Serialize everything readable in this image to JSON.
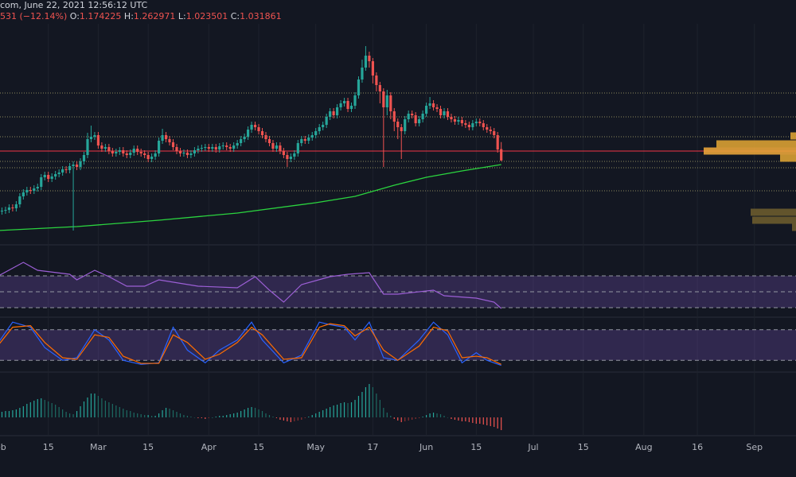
{
  "header": {
    "source": "com, June 22, 2021 12:56:12 UTC",
    "change": "531 (−12.14%)",
    "labels": [
      "O:",
      "H:",
      "L:",
      "C:"
    ]
  },
  "chart_data": [
    {
      "type": "candlestick",
      "up_color": "#26a69a",
      "down_color": "#ef5350",
      "xlim": [
        0.45,
        223.66
      ],
      "xticks": [
        {
          "value": 0,
          "label": "Feb"
        },
        {
          "value": 14,
          "label": "15"
        },
        {
          "value": 28,
          "label": "Mar"
        },
        {
          "value": 42,
          "label": "15"
        },
        {
          "value": 59,
          "label": "Apr"
        },
        {
          "value": 73,
          "label": "15"
        },
        {
          "value": 89,
          "label": "May"
        },
        {
          "value": 105,
          "label": "17"
        },
        {
          "value": 120,
          "label": "Jun"
        },
        {
          "value": 134,
          "label": "15"
        },
        {
          "value": 150,
          "label": "Jul"
        },
        {
          "value": 164,
          "label": "15"
        },
        {
          "value": 181,
          "label": "Aug"
        },
        {
          "value": 196,
          "label": "16"
        },
        {
          "value": 212,
          "label": "Sep"
        }
      ],
      "ylim": [
        0,
        2.7
      ],
      "open": [
        0.37,
        0.39,
        0.4,
        0.41,
        0.44,
        0.43,
        0.48,
        0.58,
        0.63,
        0.66,
        0.65,
        0.68,
        0.7,
        0.82,
        0.85,
        0.8,
        0.83,
        0.86,
        0.88,
        0.92,
        0.91,
        0.96,
        0.98,
        0.95,
        1.02,
        1.1,
        1.3,
        1.33,
        1.35,
        1.22,
        1.18,
        1.2,
        1.15,
        1.12,
        1.14,
        1.16,
        1.12,
        1.1,
        1.13,
        1.18,
        1.14,
        1.12,
        1.1,
        1.05,
        1.08,
        1.12,
        1.28,
        1.35,
        1.3,
        1.26,
        1.2,
        1.15,
        1.12,
        1.13,
        1.1,
        1.12,
        1.16,
        1.18,
        1.19,
        1.2,
        1.18,
        1.2,
        1.17,
        1.21,
        1.22,
        1.2,
        1.18,
        1.22,
        1.25,
        1.3,
        1.33,
        1.42,
        1.48,
        1.45,
        1.4,
        1.35,
        1.3,
        1.25,
        1.18,
        1.22,
        1.15,
        1.1,
        1.05,
        1.08,
        1.12,
        1.25,
        1.3,
        1.28,
        1.32,
        1.35,
        1.4,
        1.45,
        1.48,
        1.58,
        1.65,
        1.6,
        1.7,
        1.75,
        1.78,
        1.68,
        1.72,
        1.85,
        2.05,
        2.2,
        2.35,
        2.28,
        2.1,
        1.98,
        1.9,
        1.7,
        1.85,
        1.65,
        1.52,
        1.45,
        1.4,
        1.55,
        1.62,
        1.6,
        1.5,
        1.55,
        1.62,
        1.72,
        1.75,
        1.7,
        1.68,
        1.6,
        1.65,
        1.58,
        1.55,
        1.52,
        1.54,
        1.5,
        1.48,
        1.45,
        1.5,
        1.52,
        1.5,
        1.45,
        1.42,
        1.4,
        1.35,
        1.174225
      ],
      "high": [
        0.43,
        0.44,
        0.45,
        0.48,
        0.48,
        0.52,
        0.62,
        0.67,
        0.7,
        0.7,
        0.72,
        0.74,
        0.86,
        0.89,
        0.89,
        0.87,
        0.9,
        0.92,
        0.96,
        0.96,
        1.0,
        1.02,
        1.02,
        1.06,
        1.14,
        1.38,
        1.47,
        1.39,
        1.39,
        1.26,
        1.24,
        1.24,
        1.19,
        1.18,
        1.2,
        1.2,
        1.16,
        1.17,
        1.22,
        1.22,
        1.18,
        1.16,
        1.14,
        1.12,
        1.16,
        1.32,
        1.43,
        1.39,
        1.34,
        1.3,
        1.24,
        1.19,
        1.17,
        1.17,
        1.16,
        1.2,
        1.22,
        1.23,
        1.24,
        1.24,
        1.24,
        1.24,
        1.25,
        1.26,
        1.26,
        1.24,
        1.26,
        1.29,
        1.34,
        1.37,
        1.46,
        1.52,
        1.52,
        1.49,
        1.44,
        1.39,
        1.34,
        1.29,
        1.26,
        1.26,
        1.19,
        1.14,
        1.12,
        1.16,
        1.29,
        1.34,
        1.34,
        1.36,
        1.39,
        1.44,
        1.49,
        1.52,
        1.62,
        1.69,
        1.69,
        1.74,
        1.79,
        1.82,
        1.82,
        1.76,
        1.89,
        2.09,
        2.3,
        2.47,
        2.4,
        2.32,
        2.14,
        2.02,
        1.94,
        1.92,
        1.89,
        1.69,
        1.56,
        1.49,
        1.59,
        1.66,
        1.66,
        1.64,
        1.59,
        1.66,
        1.76,
        1.83,
        1.79,
        1.74,
        1.72,
        1.69,
        1.69,
        1.62,
        1.59,
        1.58,
        1.58,
        1.54,
        1.52,
        1.54,
        1.56,
        1.56,
        1.54,
        1.49,
        1.46,
        1.44,
        1.39,
        1.262971
      ],
      "low": [
        0.33,
        0.35,
        0.36,
        0.37,
        0.39,
        0.39,
        0.44,
        0.54,
        0.59,
        0.61,
        0.61,
        0.64,
        0.66,
        0.78,
        0.76,
        0.76,
        0.79,
        0.82,
        0.84,
        0.87,
        0.87,
        0.15,
        0.91,
        0.91,
        0.98,
        1.06,
        1.26,
        1.29,
        1.18,
        1.14,
        1.14,
        1.11,
        1.08,
        1.08,
        1.1,
        1.08,
        1.06,
        1.06,
        1.09,
        1.1,
        1.08,
        1.06,
        1.01,
        1.01,
        1.04,
        1.08,
        1.24,
        1.26,
        1.22,
        1.16,
        1.11,
        1.08,
        1.08,
        1.06,
        1.06,
        1.08,
        1.12,
        1.14,
        1.15,
        1.14,
        1.14,
        1.13,
        1.13,
        1.17,
        1.16,
        1.14,
        1.14,
        1.18,
        1.21,
        1.26,
        1.29,
        1.38,
        1.41,
        1.36,
        1.31,
        1.26,
        1.21,
        1.14,
        1.14,
        1.11,
        1.06,
        0.95,
        1.01,
        1.04,
        1.08,
        1.21,
        1.24,
        1.24,
        1.28,
        1.31,
        1.36,
        1.41,
        1.44,
        1.54,
        1.56,
        1.56,
        1.66,
        1.71,
        1.64,
        1.64,
        1.68,
        1.81,
        2.01,
        2.16,
        2.2,
        2.0,
        1.9,
        1.75,
        0.95,
        1.6,
        1.55,
        1.4,
        1.3,
        1.05,
        1.36,
        1.51,
        1.56,
        1.46,
        1.46,
        1.51,
        1.58,
        1.68,
        1.66,
        1.64,
        1.56,
        1.56,
        1.54,
        1.51,
        1.48,
        1.48,
        1.46,
        1.44,
        1.41,
        1.41,
        1.46,
        1.46,
        1.41,
        1.38,
        1.36,
        1.31,
        1.13,
        1.023501
      ],
      "close": [
        0.39,
        0.4,
        0.41,
        0.44,
        0.43,
        0.48,
        0.58,
        0.63,
        0.66,
        0.65,
        0.68,
        0.7,
        0.82,
        0.85,
        0.8,
        0.83,
        0.86,
        0.88,
        0.92,
        0.91,
        0.96,
        0.98,
        0.95,
        1.02,
        1.1,
        1.3,
        1.33,
        1.35,
        1.22,
        1.18,
        1.2,
        1.15,
        1.12,
        1.14,
        1.16,
        1.12,
        1.1,
        1.13,
        1.18,
        1.14,
        1.12,
        1.1,
        1.05,
        1.08,
        1.12,
        1.28,
        1.35,
        1.3,
        1.26,
        1.2,
        1.15,
        1.12,
        1.13,
        1.1,
        1.12,
        1.16,
        1.18,
        1.19,
        1.2,
        1.18,
        1.2,
        1.17,
        1.21,
        1.22,
        1.2,
        1.18,
        1.22,
        1.25,
        1.3,
        1.33,
        1.42,
        1.48,
        1.45,
        1.4,
        1.35,
        1.3,
        1.25,
        1.18,
        1.22,
        1.15,
        1.1,
        1.05,
        1.08,
        1.12,
        1.25,
        1.3,
        1.28,
        1.32,
        1.35,
        1.4,
        1.45,
        1.48,
        1.58,
        1.65,
        1.6,
        1.7,
        1.75,
        1.78,
        1.68,
        1.72,
        1.85,
        2.05,
        2.2,
        2.35,
        2.28,
        2.1,
        1.98,
        1.9,
        1.7,
        1.85,
        1.65,
        1.52,
        1.45,
        1.4,
        1.55,
        1.62,
        1.6,
        1.5,
        1.55,
        1.62,
        1.72,
        1.75,
        1.7,
        1.68,
        1.6,
        1.65,
        1.58,
        1.55,
        1.52,
        1.54,
        1.5,
        1.48,
        1.45,
        1.5,
        1.52,
        1.5,
        1.45,
        1.42,
        1.4,
        1.35,
        1.17,
        1.031861
      ],
      "ma": {
        "color": "#2bd43f",
        "x": [
          0,
          22,
          45,
          67,
          89,
          100,
          111,
          120,
          130,
          141
        ],
        "values": [
          0.15,
          0.2,
          0.28,
          0.37,
          0.5,
          0.58,
          0.72,
          0.82,
          0.9,
          0.98
        ]
      },
      "levels": [
        1.88,
        1.58,
        1.33,
        1.02,
        0.94,
        0.65
      ],
      "level_color": "#8c8a5c",
      "price_line": 1.15,
      "price_line_color": "#f23645",
      "volume_profile": {
        "prices": [
          1.34,
          1.24,
          1.15,
          1.06,
          0.38,
          0.28,
          0.19
        ],
        "sizes": [
          7,
          100,
          116,
          20,
          57,
          55,
          5
        ],
        "colors": [
          "#d9a033",
          "#d9a033",
          "#e8a33a",
          "#d9a033",
          "#6b5b2e",
          "#6b5b2e",
          "#6b5b2e"
        ]
      }
    },
    {
      "type": "line",
      "ylim": [
        20,
        100
      ],
      "levels": [
        70,
        50,
        30
      ],
      "band": [
        70,
        30
      ],
      "band_color": "rgba(126,87,194,0.28)",
      "x": [
        0,
        7,
        11,
        20,
        22,
        27,
        31,
        36,
        41,
        45,
        56,
        67,
        72,
        76,
        80,
        85,
        93,
        98,
        104,
        108,
        112,
        122,
        125,
        134,
        139,
        141
      ],
      "series": [
        {
          "color": "#9c5fd6",
          "values": [
            70,
            87,
            77,
            72,
            65,
            77,
            69,
            57,
            57,
            65,
            57,
            55,
            69,
            52,
            37,
            59,
            69,
            72,
            74,
            47,
            47,
            52,
            45,
            42,
            37,
            29
          ]
        }
      ]
    },
    {
      "type": "line",
      "ylim": [
        0,
        100
      ],
      "levels": [
        80,
        20
      ],
      "band": [
        80,
        20
      ],
      "band_color": "rgba(126,87,194,0.28)",
      "x": [
        0,
        4,
        9,
        13,
        18,
        22,
        27,
        31,
        35,
        40,
        45,
        49,
        53,
        58,
        62,
        67,
        71,
        74,
        80,
        85,
        90,
        93,
        97,
        100,
        104,
        108,
        112,
        118,
        122,
        126,
        130,
        134,
        137,
        141
      ],
      "series": [
        {
          "color": "#2962ff",
          "values": [
            55,
            95,
            85,
            45,
            20,
            25,
            80,
            60,
            20,
            12,
            15,
            85,
            40,
            15,
            40,
            60,
            95,
            60,
            15,
            30,
            95,
            90,
            85,
            60,
            95,
            25,
            20,
            60,
            95,
            70,
            15,
            35,
            20,
            10
          ]
        },
        {
          "color": "#ff6d00",
          "values": [
            50,
            85,
            88,
            55,
            25,
            22,
            70,
            65,
            28,
            14,
            14,
            70,
            55,
            22,
            32,
            55,
            85,
            70,
            22,
            25,
            85,
            92,
            88,
            68,
            85,
            40,
            20,
            48,
            85,
            78,
            25,
            28,
            25,
            12
          ]
        }
      ]
    },
    {
      "type": "bar",
      "ylim": [
        -20,
        55
      ],
      "colors": [
        "#26a69a",
        "#1d6b63",
        "#ef5350",
        "#8a2f30"
      ],
      "values": [
        6,
        7,
        8,
        8,
        9,
        10,
        12,
        14,
        17,
        19,
        21,
        23,
        24,
        22,
        20,
        18,
        16,
        13,
        10,
        7,
        5,
        4,
        8,
        14,
        20,
        25,
        30,
        30,
        27,
        24,
        21,
        19,
        17,
        15,
        13,
        11,
        9,
        8,
        6,
        5,
        4,
        3,
        3,
        2,
        2,
        5,
        9,
        12,
        11,
        9,
        7,
        5,
        3,
        2,
        1,
        0,
        -1,
        -1,
        -2,
        -1,
        0,
        1,
        2,
        2,
        3,
        4,
        5,
        6,
        8,
        10,
        12,
        13,
        12,
        10,
        8,
        5,
        3,
        1,
        -1,
        -3,
        -4,
        -5,
        -6,
        -5,
        -4,
        -3,
        -1,
        1,
        3,
        5,
        7,
        9,
        11,
        13,
        15,
        16,
        18,
        19,
        18,
        19,
        22,
        27,
        32,
        38,
        42,
        38,
        30,
        22,
        12,
        6,
        2,
        -2,
        -4,
        -6,
        -5,
        -4,
        -3,
        -2,
        -1,
        1,
        3,
        5,
        6,
        5,
        4,
        2,
        0,
        -2,
        -3,
        -4,
        -5,
        -5,
        -6,
        -7,
        -8,
        -8,
        -9,
        -10,
        -11,
        -12,
        -14,
        -16
      ]
    }
  ]
}
